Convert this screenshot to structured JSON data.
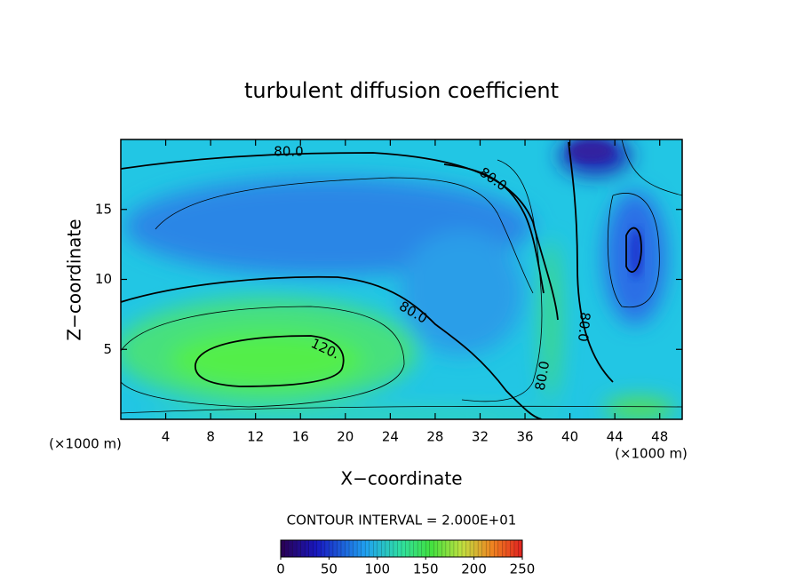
{
  "chart_data": {
    "type": "contour",
    "title": "turbulent diffusion coefficient",
    "x_label": "X−coordinate",
    "y_label": "Z−coordinate",
    "x_unit_label": "(×1000 m)",
    "xlim": [
      0,
      50
    ],
    "xticks": [
      4,
      8,
      12,
      16,
      20,
      24,
      28,
      32,
      36,
      40,
      44,
      48
    ],
    "ylim": [
      0,
      20
    ],
    "yticks": [
      5,
      10,
      15
    ],
    "contour_interval_text": "CONTOUR INTERVAL = 2.000E+01",
    "contour_labels": [
      "80.0",
      "80.0",
      "80.0",
      "80.0",
      "80.0",
      "120."
    ],
    "colorbar": {
      "lim": [
        0,
        250
      ],
      "ticks": [
        0,
        50,
        100,
        150,
        200,
        250
      ]
    }
  }
}
